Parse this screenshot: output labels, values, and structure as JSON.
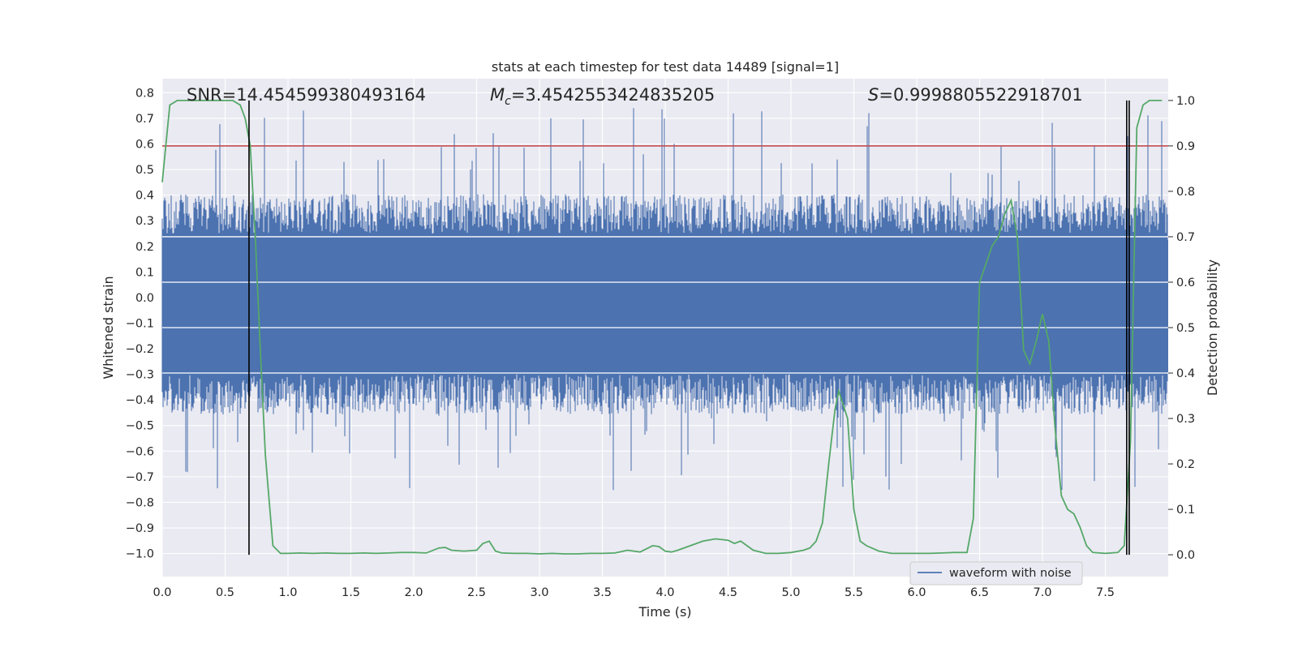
{
  "chart_data": {
    "type": "line",
    "title": "stats at each timestep for test data 14489 [signal=1]",
    "xlabel": "Time (s)",
    "ylabel": "Whitened strain",
    "y2label": "Detection probability",
    "xlim": [
      0.0,
      8.0
    ],
    "ylim": [
      -1.09,
      0.855
    ],
    "y2lim": [
      -0.048,
      1.048
    ],
    "x_ticks": [
      "0.0",
      "0.5",
      "1.0",
      "1.5",
      "2.0",
      "2.5",
      "3.0",
      "3.5",
      "4.0",
      "4.5",
      "5.0",
      "5.5",
      "6.0",
      "6.5",
      "7.0",
      "7.5"
    ],
    "x_tick_values": [
      0.0,
      0.5,
      1.0,
      1.5,
      2.0,
      2.5,
      3.0,
      3.5,
      4.0,
      4.5,
      5.0,
      5.5,
      6.0,
      6.5,
      7.0,
      7.5
    ],
    "y_ticks": [
      "0.8",
      "0.7",
      "0.6",
      "0.5",
      "0.4",
      "0.3",
      "0.2",
      "0.1",
      "0.0",
      "-0.1",
      "-0.2",
      "-0.3",
      "-0.4",
      "-0.5",
      "-0.6",
      "-0.7",
      "-0.8",
      "-0.9",
      "-1.0"
    ],
    "y_tick_values": [
      0.8,
      0.7,
      0.6,
      0.5,
      0.4,
      0.3,
      0.2,
      0.1,
      0.0,
      -0.1,
      -0.2,
      -0.3,
      -0.4,
      -0.5,
      -0.6,
      -0.7,
      -0.8,
      -0.9,
      -1.0
    ],
    "y2_ticks": [
      "1.0",
      "0.9",
      "0.8",
      "0.7",
      "0.6",
      "0.5",
      "0.4",
      "0.3",
      "0.2",
      "0.1",
      "0.0"
    ],
    "y2_tick_values": [
      1.0,
      0.9,
      0.8,
      0.7,
      0.6,
      0.5,
      0.4,
      0.3,
      0.2,
      0.1,
      0.0
    ],
    "annotations": {
      "snr": "SNR=14.454599380493164",
      "mc_symbol": "M",
      "mc_sub": "c",
      "mc_value": "=3.4542553424835205",
      "s_symbol": "S",
      "s_value": "=0.9998805522918701"
    },
    "legend": {
      "label": "waveform with noise",
      "position": "lower-right"
    },
    "threshold_line": {
      "value": 0.9,
      "axis": "y2",
      "color": "#c44e52"
    },
    "vertical_lines": [
      0.69,
      7.67,
      7.69
    ],
    "waveform": {
      "color": "#4c72b0",
      "band_extent": 0.42,
      "band_core": 0.3,
      "spike_max": 0.74,
      "spike_min": -0.76,
      "typical_low": -0.3,
      "typical_high": 0.25
    },
    "series": [
      {
        "name": "detection probability",
        "axis": "y2",
        "color": "#55a868",
        "x": [
          0.0,
          0.06,
          0.12,
          0.2,
          0.3,
          0.4,
          0.5,
          0.56,
          0.62,
          0.66,
          0.7,
          0.74,
          0.78,
          0.82,
          0.88,
          0.94,
          1.0,
          1.1,
          1.2,
          1.3,
          1.4,
          1.5,
          1.6,
          1.7,
          1.8,
          1.9,
          2.0,
          2.1,
          2.2,
          2.25,
          2.3,
          2.4,
          2.5,
          2.55,
          2.6,
          2.65,
          2.7,
          2.8,
          2.9,
          3.0,
          3.1,
          3.2,
          3.3,
          3.4,
          3.5,
          3.6,
          3.7,
          3.8,
          3.9,
          3.95,
          4.0,
          4.05,
          4.1,
          4.2,
          4.3,
          4.4,
          4.5,
          4.55,
          4.6,
          4.65,
          4.7,
          4.8,
          4.9,
          5.0,
          5.1,
          5.15,
          5.2,
          5.25,
          5.3,
          5.35,
          5.38,
          5.45,
          5.5,
          5.55,
          5.6,
          5.7,
          5.8,
          5.9,
          6.0,
          6.1,
          6.2,
          6.3,
          6.4,
          6.45,
          6.5,
          6.55,
          6.6,
          6.65,
          6.7,
          6.75,
          6.8,
          6.85,
          6.9,
          6.95,
          7.0,
          7.05,
          7.1,
          7.15,
          7.2,
          7.25,
          7.3,
          7.35,
          7.4,
          7.5,
          7.6,
          7.65,
          7.7,
          7.75,
          7.8,
          7.85,
          7.9,
          7.95
        ],
        "values": [
          0.82,
          0.99,
          1.0,
          1.0,
          1.0,
          1.0,
          1.0,
          1.0,
          0.99,
          0.96,
          0.9,
          0.7,
          0.45,
          0.22,
          0.02,
          0.003,
          0.003,
          0.004,
          0.003,
          0.004,
          0.003,
          0.003,
          0.004,
          0.003,
          0.004,
          0.005,
          0.005,
          0.004,
          0.015,
          0.016,
          0.01,
          0.008,
          0.01,
          0.025,
          0.03,
          0.008,
          0.004,
          0.003,
          0.003,
          0.002,
          0.003,
          0.002,
          0.002,
          0.003,
          0.003,
          0.004,
          0.01,
          0.006,
          0.02,
          0.018,
          0.008,
          0.006,
          0.01,
          0.02,
          0.03,
          0.035,
          0.032,
          0.025,
          0.03,
          0.02,
          0.01,
          0.003,
          0.003,
          0.005,
          0.01,
          0.015,
          0.03,
          0.07,
          0.2,
          0.32,
          0.36,
          0.3,
          0.1,
          0.03,
          0.02,
          0.008,
          0.003,
          0.003,
          0.003,
          0.003,
          0.004,
          0.005,
          0.005,
          0.08,
          0.6,
          0.64,
          0.68,
          0.7,
          0.75,
          0.78,
          0.7,
          0.45,
          0.42,
          0.47,
          0.53,
          0.47,
          0.28,
          0.13,
          0.1,
          0.09,
          0.06,
          0.02,
          0.005,
          0.003,
          0.005,
          0.02,
          0.25,
          0.94,
          0.99,
          1.0,
          1.0,
          1.0
        ]
      }
    ]
  }
}
